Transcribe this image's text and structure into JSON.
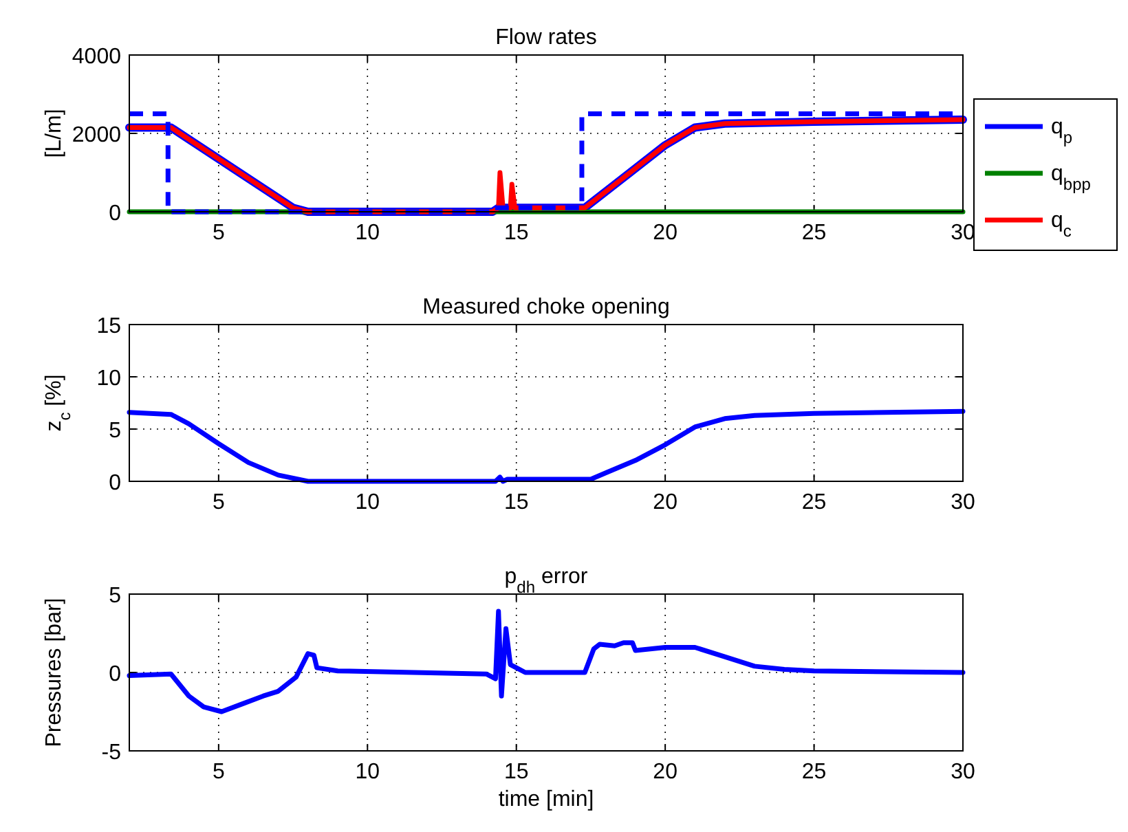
{
  "chart_data": [
    {
      "type": "line",
      "title": "Flow rates",
      "ylabel": "[L/m]",
      "xlim": [
        2,
        30
      ],
      "xticks": [
        5,
        10,
        15,
        20,
        25,
        30
      ],
      "ylim": [
        0,
        4000
      ],
      "yticks": [
        0,
        2000,
        4000
      ],
      "grid": true,
      "legend": "right",
      "series": [
        {
          "name": "q$_{p}$",
          "color": "#0000ff",
          "x": [
            2,
            3.4,
            7.5,
            8,
            14.2,
            14.4,
            17.3,
            20,
            21,
            22,
            25,
            30
          ],
          "values": [
            2150,
            2150,
            100,
            0,
            0,
            100,
            100,
            1700,
            2150,
            2250,
            2300,
            2350
          ]
        },
        {
          "name": "q$_{bpp}$",
          "color": "#008000",
          "x": [
            2,
            30
          ],
          "values": [
            0,
            0
          ]
        },
        {
          "name": "q$_{c}$",
          "color": "#ff0000",
          "x": [
            2,
            3.4,
            7.5,
            8,
            14.2,
            14.4,
            14.45,
            14.55,
            14.8,
            14.85,
            14.95,
            17.3,
            20,
            21,
            22,
            25,
            30
          ],
          "values": [
            2150,
            2150,
            100,
            0,
            0,
            100,
            1000,
            100,
            100,
            700,
            100,
            100,
            1700,
            2150,
            2250,
            2300,
            2350
          ]
        },
        {
          "color": "#0000ff",
          "line_style": "dashed",
          "x": [
            2,
            3.3,
            3.3,
            14.2,
            14.2,
            17.2,
            17.2,
            30
          ],
          "values": [
            2500,
            2500,
            0,
            0,
            100,
            100,
            2500,
            2500
          ]
        }
      ]
    },
    {
      "type": "line",
      "title": "Measured choke opening",
      "ylabel": "z$_{c}$ [%]",
      "xlim": [
        2,
        30
      ],
      "xticks": [
        5,
        10,
        15,
        20,
        25,
        30
      ],
      "ylim": [
        0,
        15
      ],
      "yticks": [
        0,
        5,
        10,
        15
      ],
      "grid": true,
      "series": [
        {
          "color": "#0000ff",
          "x": [
            2,
            3.4,
            4,
            5,
            6,
            7,
            8,
            14.3,
            14.45,
            14.55,
            14.7,
            17.5,
            18,
            19,
            20,
            21,
            22,
            23,
            25,
            30
          ],
          "values": [
            6.6,
            6.4,
            5.5,
            3.6,
            1.8,
            0.6,
            0,
            0,
            0.4,
            0,
            0.2,
            0.2,
            0.8,
            2,
            3.5,
            5.2,
            6,
            6.3,
            6.5,
            6.7
          ]
        }
      ]
    },
    {
      "type": "line",
      "title": "p$_{dh}$ error",
      "xlabel": "time [min]",
      "ylabel": "Pressures [bar]",
      "xlim": [
        2,
        30
      ],
      "xticks": [
        5,
        10,
        15,
        20,
        25,
        30
      ],
      "ylim": [
        -5,
        5
      ],
      "yticks": [
        -5,
        0,
        5
      ],
      "grid": true,
      "series": [
        {
          "color": "#0000ff",
          "x": [
            2,
            3.4,
            4,
            4.5,
            5.1,
            5.8,
            6.5,
            7,
            7.6,
            8,
            8.2,
            8.3,
            9,
            14,
            14.3,
            14.4,
            14.5,
            14.65,
            14.8,
            15,
            15.3,
            17.3,
            17.6,
            17.8,
            18.3,
            18.6,
            18.9,
            19,
            20,
            21,
            22,
            23,
            24,
            25,
            30
          ],
          "values": [
            -0.2,
            -0.1,
            -1.5,
            -2.2,
            -2.5,
            -2,
            -1.5,
            -1.2,
            -0.3,
            1.2,
            1.1,
            0.3,
            0.1,
            -0.1,
            -0.4,
            3.9,
            -1.5,
            2.8,
            0.5,
            0.3,
            0,
            0,
            1.5,
            1.8,
            1.7,
            1.9,
            1.9,
            1.4,
            1.6,
            1.6,
            1,
            0.4,
            0.2,
            0.1,
            0
          ]
        }
      ]
    }
  ]
}
